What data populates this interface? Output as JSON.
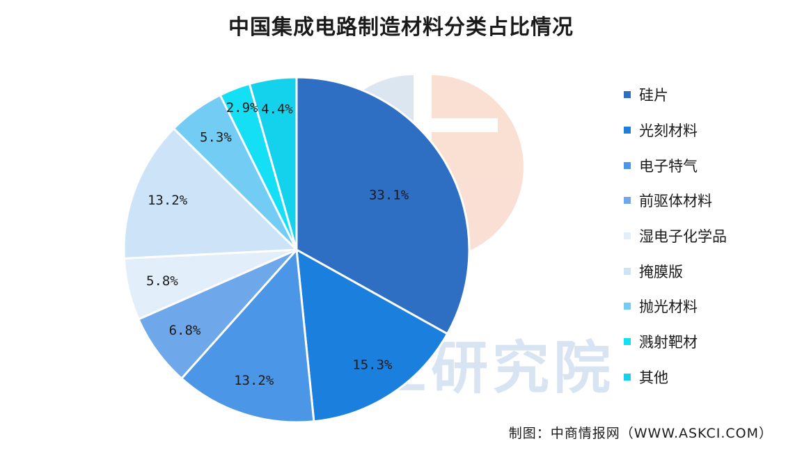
{
  "watermark": {
    "text": "中商产业研究院",
    "colors": {
      "left": "#a9c3de",
      "right": "#f3b294"
    }
  },
  "chart_data": {
    "type": "pie",
    "title": "中国集成电路制造材料分类占比情况",
    "legend_position": "right",
    "slices": [
      {
        "label": "硅片",
        "value": 33.1,
        "value_label": "33.1%",
        "color": "#2e6fc4"
      },
      {
        "label": "光刻材料",
        "value": 15.3,
        "value_label": "15.3%",
        "color": "#1b7fde"
      },
      {
        "label": "电子特气",
        "value": 13.2,
        "value_label": "13.2%",
        "color": "#4b96e6"
      },
      {
        "label": "前驱体材料",
        "value": 6.8,
        "value_label": "6.8%",
        "color": "#6ea8ea"
      },
      {
        "label": "湿电子化学品",
        "value": 5.8,
        "value_label": "5.8%",
        "color": "#e3eefb"
      },
      {
        "label": "掩膜版",
        "value": 13.2,
        "value_label": "13.2%",
        "color": "#cde4f8"
      },
      {
        "label": "抛光材料",
        "value": 5.3,
        "value_label": "5.3%",
        "color": "#72ccf3"
      },
      {
        "label": "溅射靶材",
        "value": 2.9,
        "value_label": "2.9%",
        "color": "#14dff4"
      },
      {
        "label": "其他",
        "value": 4.4,
        "value_label": "4.4%",
        "color": "#14d2ec"
      }
    ]
  },
  "source": "制图：中商情报网（WWW.ASKCI.COM）"
}
